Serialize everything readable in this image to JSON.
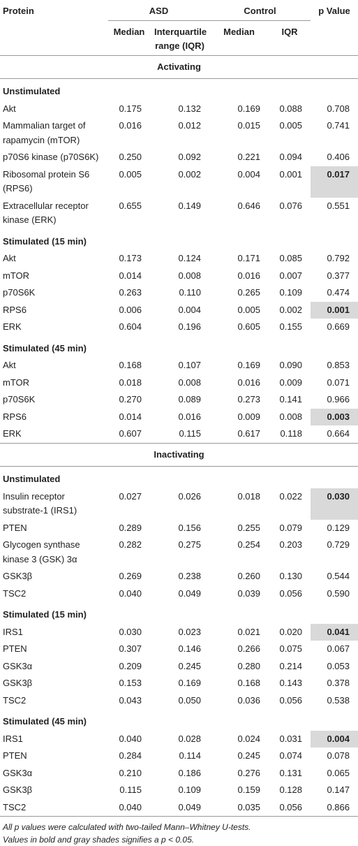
{
  "header": {
    "protein": "Protein",
    "asd": "ASD",
    "control": "Control",
    "p_value": "p Value",
    "asd_median": "Median",
    "asd_iqr": "Interquartile range (IQR)",
    "control_median": "Median",
    "control_iqr": "IQR"
  },
  "sections": [
    {
      "title": "Activating",
      "groups": [
        {
          "title": "Unstimulated",
          "rows": [
            {
              "cells": [
                "Akt",
                "0.175",
                "0.132",
                "0.169",
                "0.088",
                "0.708"
              ]
            },
            {
              "cells": [
                "Mammalian target of rapamycin (mTOR)",
                "0.016",
                "0.012",
                "0.015",
                "0.005",
                "0.741"
              ]
            },
            {
              "cells": [
                "p70S6 kinase (p70S6K)",
                "0.250",
                "0.092",
                "0.221",
                "0.094",
                "0.406"
              ]
            },
            {
              "cells": [
                "Ribosomal protein S6 (RPS6)",
                "0.005",
                "0.002",
                "0.004",
                "0.001",
                "0.017"
              ],
              "significant": true
            },
            {
              "cells": [
                "Extracellular receptor kinase (ERK)",
                "0.655",
                "0.149",
                "0.646",
                "0.076",
                "0.551"
              ]
            }
          ]
        },
        {
          "title": "Stimulated (15 min)",
          "rows": [
            {
              "cells": [
                "Akt",
                "0.173",
                "0.124",
                "0.171",
                "0.085",
                "0.792"
              ]
            },
            {
              "cells": [
                "mTOR",
                "0.014",
                "0.008",
                "0.016",
                "0.007",
                "0.377"
              ]
            },
            {
              "cells": [
                "p70S6K",
                "0.263",
                "0.110",
                "0.265",
                "0.109",
                "0.474"
              ]
            },
            {
              "cells": [
                "RPS6",
                "0.006",
                "0.004",
                "0.005",
                "0.002",
                "0.001"
              ],
              "significant": true
            },
            {
              "cells": [
                "ERK",
                "0.604",
                "0.196",
                "0.605",
                "0.155",
                "0.669"
              ]
            }
          ]
        },
        {
          "title": "Stimulated (45 min)",
          "rows": [
            {
              "cells": [
                "Akt",
                "0.168",
                "0.107",
                "0.169",
                "0.090",
                "0.853"
              ]
            },
            {
              "cells": [
                "mTOR",
                "0.018",
                "0.008",
                "0.016",
                "0.009",
                "0.071"
              ]
            },
            {
              "cells": [
                "p70S6K",
                "0.270",
                "0.089",
                "0.273",
                "0.141",
                "0.966"
              ]
            },
            {
              "cells": [
                "RPS6",
                "0.014",
                "0.016",
                "0.009",
                "0.008",
                "0.003"
              ],
              "significant": true
            },
            {
              "cells": [
                "ERK",
                "0.607",
                "0.115",
                "0.617",
                "0.118",
                "0.664"
              ]
            }
          ]
        }
      ]
    },
    {
      "title": "Inactivating",
      "groups": [
        {
          "title": "Unstimulated",
          "rows": [
            {
              "cells": [
                "Insulin receptor substrate-1 (IRS1)",
                "0.027",
                "0.026",
                "0.018",
                "0.022",
                "0.030"
              ],
              "significant": true
            },
            {
              "cells": [
                "PTEN",
                "0.289",
                "0.156",
                "0.255",
                "0.079",
                "0.129"
              ]
            },
            {
              "cells": [
                "Glycogen synthase kinase 3 (GSK) 3α",
                "0.282",
                "0.275",
                "0.254",
                "0.203",
                "0.729"
              ]
            },
            {
              "cells": [
                "GSK3β",
                "0.269",
                "0.238",
                "0.260",
                "0.130",
                "0.544"
              ]
            },
            {
              "cells": [
                "TSC2",
                "0.040",
                "0.049",
                "0.039",
                "0.056",
                "0.590"
              ]
            }
          ]
        },
        {
          "title": "Stimulated (15 min)",
          "rows": [
            {
              "cells": [
                "IRS1",
                "0.030",
                "0.023",
                "0.021",
                "0.020",
                "0.041"
              ],
              "significant": true
            },
            {
              "cells": [
                "PTEN",
                "0.307",
                "0.146",
                "0.266",
                "0.075",
                "0.067"
              ]
            },
            {
              "cells": [
                "GSK3α",
                "0.209",
                "0.245",
                "0.280",
                "0.214",
                "0.053"
              ]
            },
            {
              "cells": [
                "GSK3β",
                "0.153",
                "0.169",
                "0.168",
                "0.143",
                "0.378"
              ]
            },
            {
              "cells": [
                "TSC2",
                "0.043",
                "0.050",
                "0.036",
                "0.056",
                "0.538"
              ]
            }
          ]
        },
        {
          "title": "Stimulated (45 min)",
          "rows": [
            {
              "cells": [
                "IRS1",
                "0.040",
                "0.028",
                "0.024",
                "0.031",
                "0.004"
              ],
              "significant": true
            },
            {
              "cells": [
                "PTEN",
                "0.284",
                "0.114",
                "0.245",
                "0.074",
                "0.078"
              ]
            },
            {
              "cells": [
                "GSK3α",
                "0.210",
                "0.186",
                "0.276",
                "0.131",
                "0.065"
              ]
            },
            {
              "cells": [
                "GSK3β",
                "0.115",
                "0.109",
                "0.159",
                "0.128",
                "0.147"
              ]
            },
            {
              "cells": [
                "TSC2",
                "0.040",
                "0.049",
                "0.035",
                "0.056",
                "0.866"
              ]
            }
          ]
        }
      ]
    }
  ],
  "footnotes": [
    "All p values were calculated with two-tailed Mann–Whitney U-tests.",
    "Values in bold and gray shades signifies a p < 0.05."
  ]
}
